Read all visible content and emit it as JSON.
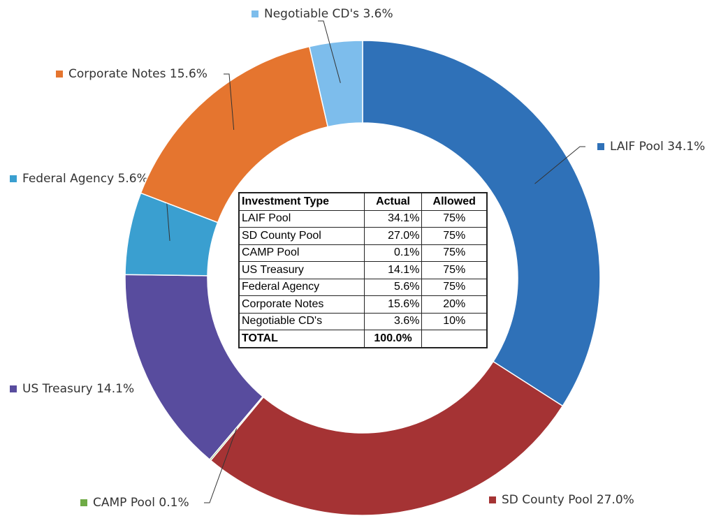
{
  "chart_data": {
    "type": "donut",
    "categories": [
      "LAIF Pool",
      "SD County Pool",
      "CAMP Pool",
      "US Treasury",
      "Federal Agency",
      "Corporate Notes",
      "Negotiable CD's"
    ],
    "values": [
      34.1,
      27.0,
      0.1,
      14.1,
      5.6,
      15.6,
      3.6
    ],
    "value_labels": [
      "34.1%",
      "27.0%",
      "0.1%",
      "14.1%",
      "5.6%",
      "15.6%",
      "3.6%"
    ],
    "colors": [
      "#2f71b8",
      "#a53334",
      "#6fab46",
      "#584c9e",
      "#3a9fd0",
      "#e5752f",
      "#7dbdec"
    ]
  },
  "table": {
    "header": [
      "Investment Type",
      "Actual",
      "Allowed"
    ],
    "rows": [
      [
        "LAIF Pool",
        "34.1%",
        "75%"
      ],
      [
        "SD County Pool",
        "27.0%",
        "75%"
      ],
      [
        "CAMP Pool",
        "0.1%",
        "75%"
      ],
      [
        "US Treasury",
        "14.1%",
        "75%"
      ],
      [
        "Federal Agency",
        "5.6%",
        "75%"
      ],
      [
        "Corporate Notes",
        "15.6%",
        "20%"
      ],
      [
        "Negotiable CD's",
        "3.6%",
        "10%"
      ],
      [
        "TOTAL",
        "100.0%"
      ]
    ]
  }
}
